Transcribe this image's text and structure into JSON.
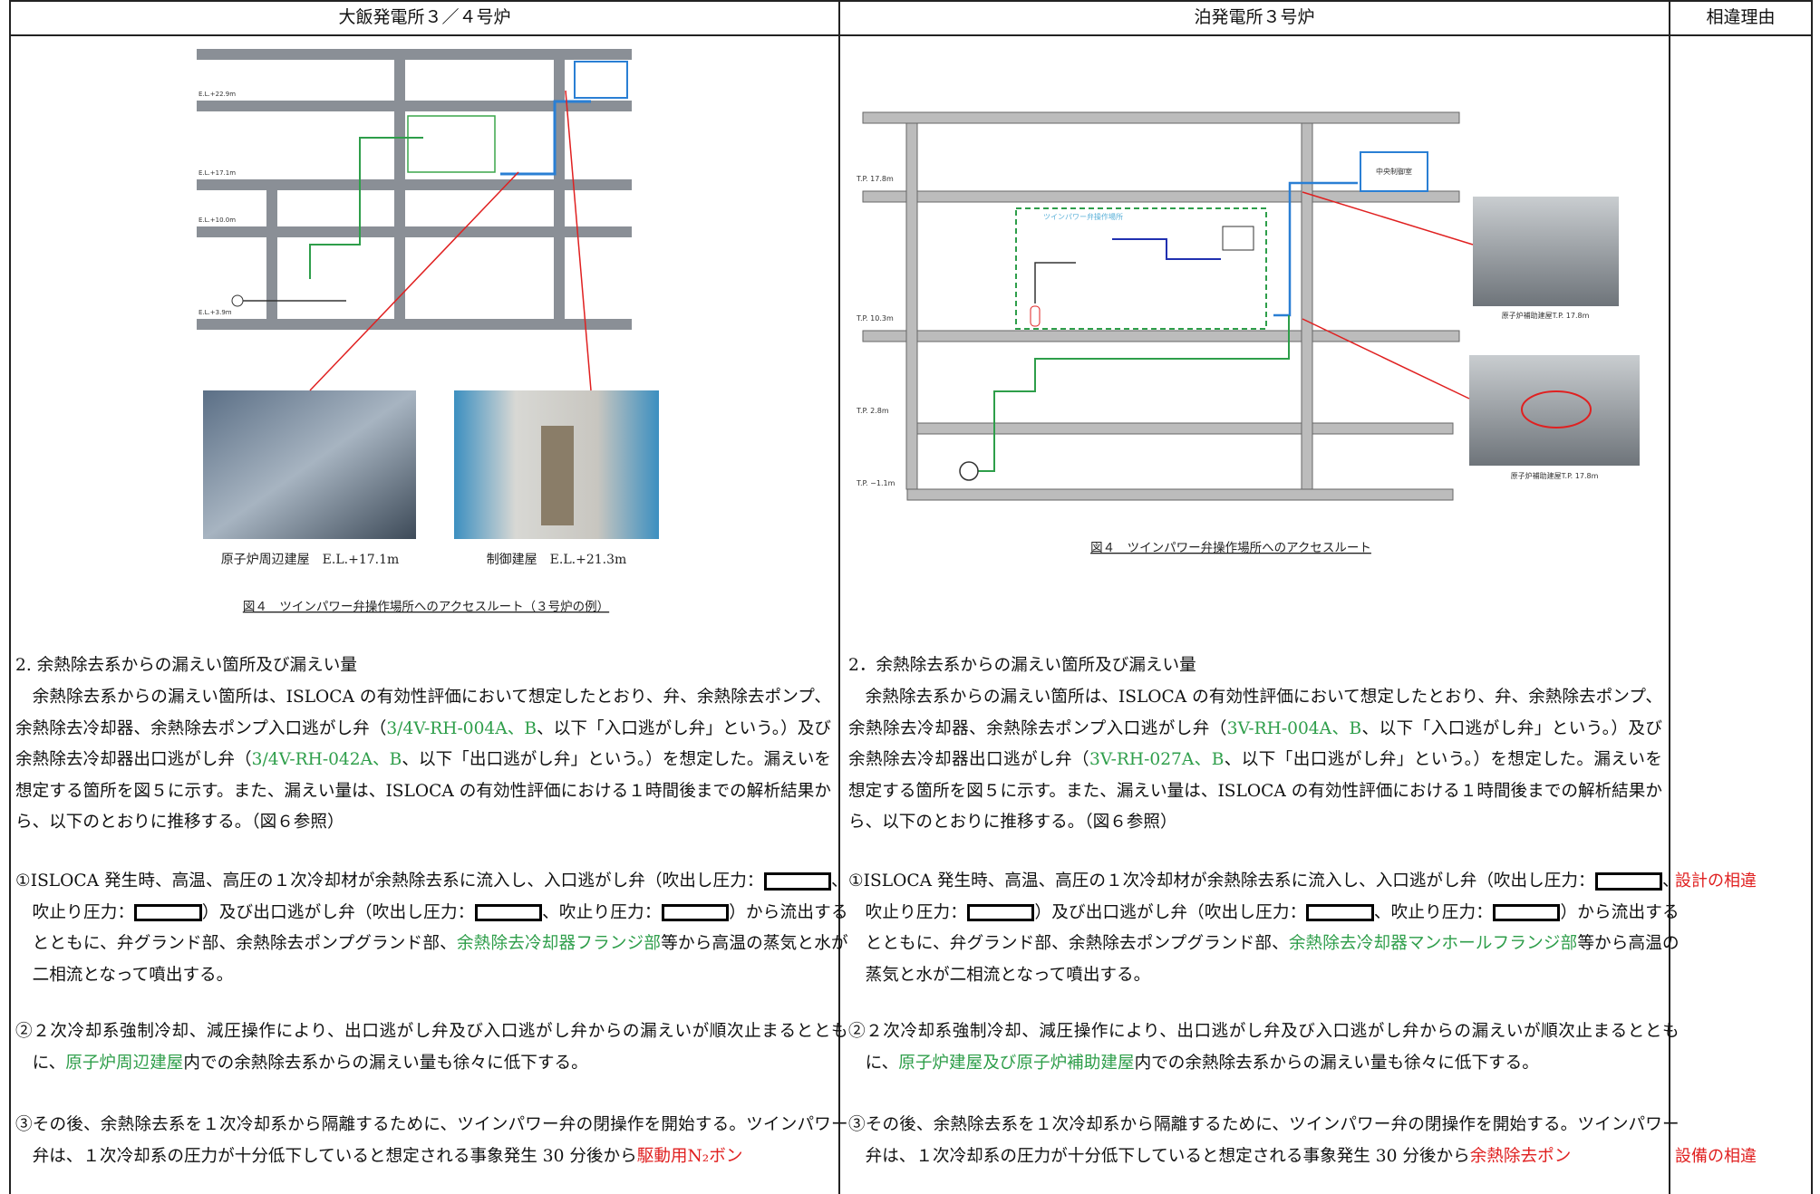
{
  "header": {
    "left": "大飯発電所３／４号炉",
    "right": "泊発電所３号炉",
    "reason": "相違理由"
  },
  "left": {
    "diagram_labels": [
      "E.L.+22.9m",
      "E.L.+17.1m",
      "E.L.+10.0m",
      "E.L.+3.9m"
    ],
    "photo_captions": [
      "原子炉周辺建屋　E.L.+17.1m",
      "制御建屋　E.L.+21.3m"
    ],
    "figure_caption": "図４　ツインパワー弁操作場所へのアクセスルート（３号炉の例）",
    "heading": "2. 余熱除去系からの漏えい箇所及び漏えい量",
    "paragraphs": [
      [
        {
          "text": "　余熱除去系からの漏えい箇所は、ISLOCA の有効性評価において想定したとおり、弁、余熱除去ポンプ、余熱除去冷却器、余熱除去ポンプ入口逃がし弁（"
        },
        {
          "text": "3/4V-RH-004A、B",
          "color": "#2e9e4a"
        },
        {
          "text": "、以下「入口逃がし弁」という。）及び余熱除去冷却器出口逃がし弁（"
        },
        {
          "text": "3/4V-RH-042A、B",
          "color": "#2e9e4a"
        },
        {
          "text": "、以下「出口逃がし弁」という。）を想定した。漏えいを想定する箇所を図５に示す。また、漏えい量は、ISLOCA の有効性評価における１時間後までの解析結果から、以下のとおりに推移する。（図６参照）"
        }
      ],
      [
        {
          "text": "①ISLOCA 発生時、高温、高圧の１次冷却材が余熱除去系に流入し、入口逃がし弁（吹出し圧力："
        },
        {
          "redacted": true
        },
        {
          "text": "、吹止り圧力："
        },
        {
          "redacted": true
        },
        {
          "text": "）及び出口逃がし弁（吹出し圧力："
        },
        {
          "redacted": true
        },
        {
          "text": "、吹止り圧力："
        },
        {
          "redacted": true
        },
        {
          "text": "）から流出するとともに、弁グランド部、余熱除去ポンプグランド部、"
        },
        {
          "text": "余熱除去冷却器フランジ部",
          "color": "#2e9e4a"
        },
        {
          "text": "等から高温の蒸気と水が二相流となって噴出する。"
        }
      ],
      [
        {
          "text": "②２次冷却系強制冷却、減圧操作により、出口逃がし弁及び入口逃がし弁からの漏えいが順次止まるとともに、"
        },
        {
          "text": "原子炉周辺建屋",
          "color": "#2e9e4a"
        },
        {
          "text": "内での余熱除去系からの漏えい量も徐々に低下する。"
        }
      ],
      [
        {
          "text": "③その後、余熱除去系を１次冷却系から隔離するために、ツインパワー弁の閉操作を開始する。ツインパワー弁は、１次冷却系の圧力が十分低下していると想定される事象発生 30 分後から"
        },
        {
          "text": "駆動用N₂ボン",
          "color": "#e02020"
        }
      ]
    ]
  },
  "right": {
    "diagram_labels": [
      "T.P. 17.8m",
      "T.P. 10.3m",
      "T.P. 2.8m",
      "T.P. −1.1m",
      "中央制御室",
      "ツインパワー弁操作場所"
    ],
    "photo_captions": [
      "原子炉補助建屋T.P. 17.8m",
      "原子炉補助建屋T.P. 17.8m"
    ],
    "figure_caption": "図４　ツインパワー弁操作場所へのアクセスルート",
    "heading": "2．余熱除去系からの漏えい箇所及び漏えい量",
    "paragraphs": [
      [
        {
          "text": "　余熱除去系からの漏えい箇所は、ISLOCA の有効性評価において想定したとおり、弁、余熱除去ポンプ、余熱除去冷却器、余熱除去ポンプ入口逃がし弁（"
        },
        {
          "text": "3V-RH-004A、B",
          "color": "#2e9e4a"
        },
        {
          "text": "、以下「入口逃がし弁」という。）及び余熱除去冷却器出口逃がし弁（"
        },
        {
          "text": "3V-RH-027A、B",
          "color": "#2e9e4a"
        },
        {
          "text": "、以下「出口逃がし弁」という。）を想定した。漏えいを想定する箇所を図５に示す。また、漏えい量は、ISLOCA の有効性評価における１時間後までの解析結果から、以下のとおりに推移する。（図６参照）"
        }
      ],
      [
        {
          "text": "①ISLOCA 発生時、高温、高圧の１次冷却材が余熱除去系に流入し、入口逃がし弁（吹出し圧力："
        },
        {
          "redacted": true
        },
        {
          "text": "、吹止り圧力："
        },
        {
          "redacted": true
        },
        {
          "text": "）及び出口逃がし弁（吹出し圧力："
        },
        {
          "redacted": true
        },
        {
          "text": "、吹止り圧力："
        },
        {
          "redacted": true
        },
        {
          "text": "）から流出するとともに、弁グランド部、余熱除去ポンプグランド部、"
        },
        {
          "text": "余熱除去冷却器マンホールフランジ部",
          "color": "#2e9e4a"
        },
        {
          "text": "等から高温の蒸気と水が二相流となって噴出する。"
        }
      ],
      [
        {
          "text": "②２次冷却系強制冷却、減圧操作により、出口逃がし弁及び入口逃がし弁からの漏えいが順次止まるとともに、"
        },
        {
          "text": "原子炉建屋及び原子炉補助建屋",
          "color": "#2e9e4a"
        },
        {
          "text": "内での余熱除去系からの漏えい量も徐々に低下する。"
        }
      ],
      [
        {
          "text": "③その後、余熱除去系を１次冷却系から隔離するために、ツインパワー弁の閉操作を開始する。ツインパワー弁は、１次冷却系の圧力が十分低下していると想定される事象発生 30 分後から"
        },
        {
          "text": "余熱除去ポン",
          "color": "#e02020"
        }
      ]
    ]
  },
  "reasons": [
    {
      "text": "設計の相違",
      "color": "#e02020"
    },
    {
      "text": "設備の相違",
      "color": "#e02020"
    }
  ]
}
